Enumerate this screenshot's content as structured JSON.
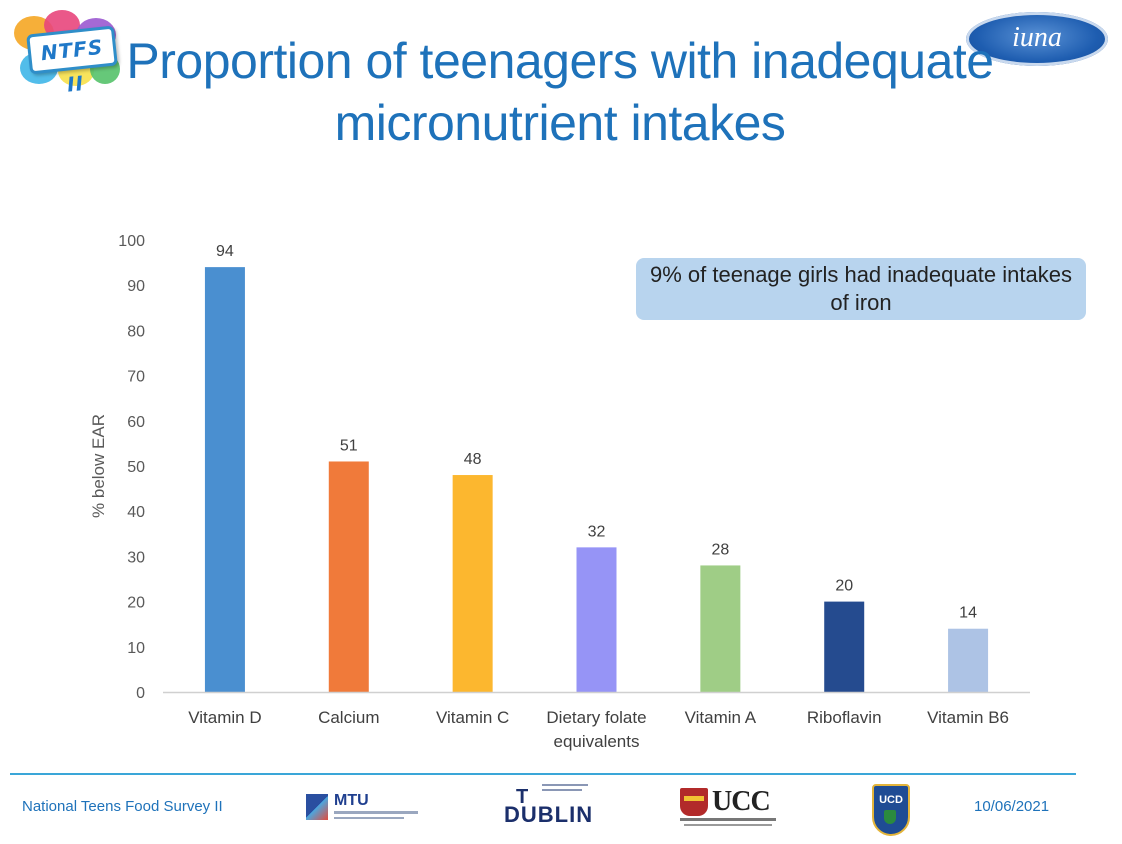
{
  "slide": {
    "title": "Proportion of teenagers with inadequate micronutrient intakes",
    "logos": {
      "left_logo_text": "NTFS II",
      "right_logo_text": "iuna"
    },
    "callout": "9% of teenage girls had inadequate intakes of iron",
    "footer": {
      "survey_name": "National Teens Food Survey II",
      "date": "10/06/2021",
      "sponsors": {
        "mtu": "MTU",
        "tudublin": "DUBLIN",
        "ucc": "UCC",
        "ucd": "UCD"
      }
    }
  },
  "chart_data": {
    "type": "bar",
    "categories": [
      "Vitamin D",
      "Calcium",
      "Vitamin C",
      "Dietary folate equivalents",
      "Vitamin A",
      "Riboflavin",
      "Vitamin B6"
    ],
    "category_lines": [
      [
        "Vitamin D"
      ],
      [
        "Calcium"
      ],
      [
        "Vitamin C"
      ],
      [
        "Dietary folate",
        "equivalents"
      ],
      [
        "Vitamin A"
      ],
      [
        "Riboflavin"
      ],
      [
        "Vitamin B6"
      ]
    ],
    "values": [
      94,
      51,
      48,
      32,
      28,
      20,
      14
    ],
    "data_labels": [
      "94",
      "51",
      "48",
      "32",
      "28",
      "20",
      "14"
    ],
    "colors": [
      "#4a8fd0",
      "#f07a3a",
      "#fcb72f",
      "#9694f6",
      "#9fcd86",
      "#254b8f",
      "#adc3e5"
    ],
    "ylabel": "% below EAR",
    "ylim": [
      0,
      100
    ],
    "yticks": [
      0,
      10,
      20,
      30,
      40,
      50,
      60,
      70,
      80,
      90,
      100
    ],
    "grid": false,
    "legend": "none"
  }
}
